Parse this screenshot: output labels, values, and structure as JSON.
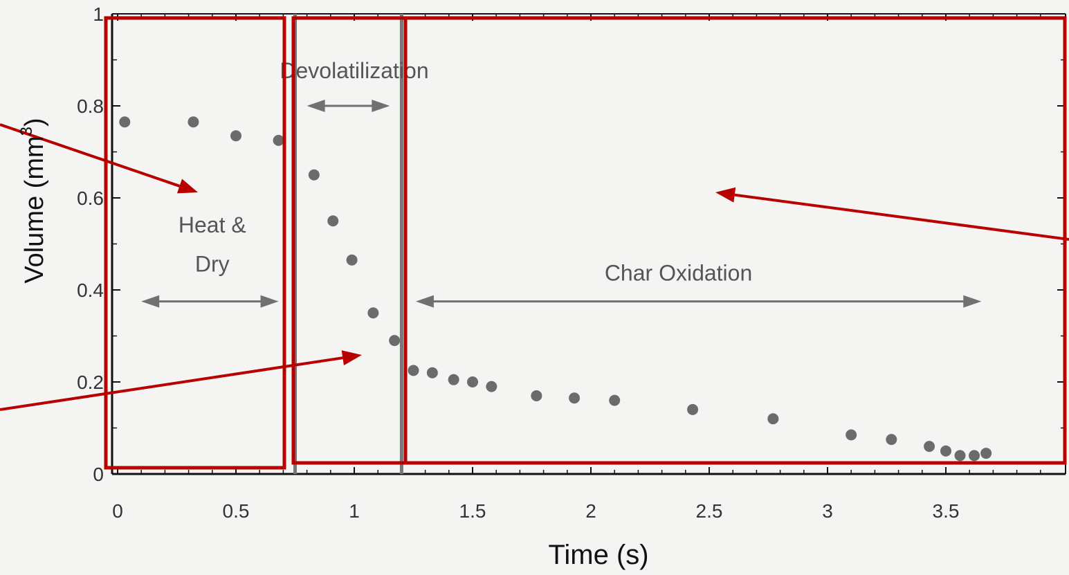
{
  "chart_data": {
    "type": "scatter",
    "xlabel": "Time (s)",
    "ylabel": "Volume (mm",
    "ylabel_superscript": "3",
    "ylabel_close": ")",
    "xlim": [
      -0.03,
      4.0
    ],
    "ylim": [
      0,
      1
    ],
    "x_ticks": [
      0,
      0.5,
      1,
      1.5,
      2,
      2.5,
      3,
      3.5
    ],
    "x_tick_labels": [
      "0",
      "0.5",
      "1",
      "1.5",
      "2",
      "2.5",
      "3",
      "3.5"
    ],
    "y_ticks": [
      0,
      0.2,
      0.4,
      0.6,
      0.8,
      1
    ],
    "y_tick_labels": [
      "0",
      "0.2",
      "0.4",
      "0.6",
      "0.8",
      "1"
    ],
    "points": [
      {
        "x": 0.03,
        "y": 0.765
      },
      {
        "x": 0.32,
        "y": 0.765
      },
      {
        "x": 0.5,
        "y": 0.735
      },
      {
        "x": 0.68,
        "y": 0.725
      },
      {
        "x": 0.83,
        "y": 0.65
      },
      {
        "x": 0.91,
        "y": 0.55
      },
      {
        "x": 0.99,
        "y": 0.465
      },
      {
        "x": 1.08,
        "y": 0.35
      },
      {
        "x": 1.17,
        "y": 0.29
      },
      {
        "x": 1.25,
        "y": 0.225
      },
      {
        "x": 1.33,
        "y": 0.22
      },
      {
        "x": 1.42,
        "y": 0.205
      },
      {
        "x": 1.5,
        "y": 0.2
      },
      {
        "x": 1.58,
        "y": 0.19
      },
      {
        "x": 1.77,
        "y": 0.17
      },
      {
        "x": 1.93,
        "y": 0.165
      },
      {
        "x": 2.1,
        "y": 0.16
      },
      {
        "x": 2.43,
        "y": 0.14
      },
      {
        "x": 2.77,
        "y": 0.12
      },
      {
        "x": 3.1,
        "y": 0.085
      },
      {
        "x": 3.27,
        "y": 0.075
      },
      {
        "x": 3.43,
        "y": 0.06
      },
      {
        "x": 3.5,
        "y": 0.05
      },
      {
        "x": 3.56,
        "y": 0.04
      },
      {
        "x": 3.62,
        "y": 0.04
      },
      {
        "x": 3.67,
        "y": 0.045
      }
    ],
    "phase_boundaries": [
      0.75,
      1.2
    ],
    "annotations": [
      {
        "text": "Heat &",
        "x": 0.4,
        "y": 0.525
      },
      {
        "text": "Dry",
        "x": 0.4,
        "y": 0.44
      },
      {
        "text": "Devolatilization",
        "x": 1.0,
        "y": 0.86
      },
      {
        "text": "Char Oxidation",
        "x": 2.37,
        "y": 0.42
      }
    ],
    "range_arrows": [
      {
        "from": 0.1,
        "to": 0.68,
        "y": 0.375
      },
      {
        "from": 0.8,
        "to": 1.15,
        "y": 0.8
      },
      {
        "from": 1.26,
        "to": 3.65,
        "y": 0.375
      }
    ],
    "highlight_color": "#b80000",
    "marker_color": "#6b6b6b",
    "axis_color": "#111111"
  }
}
